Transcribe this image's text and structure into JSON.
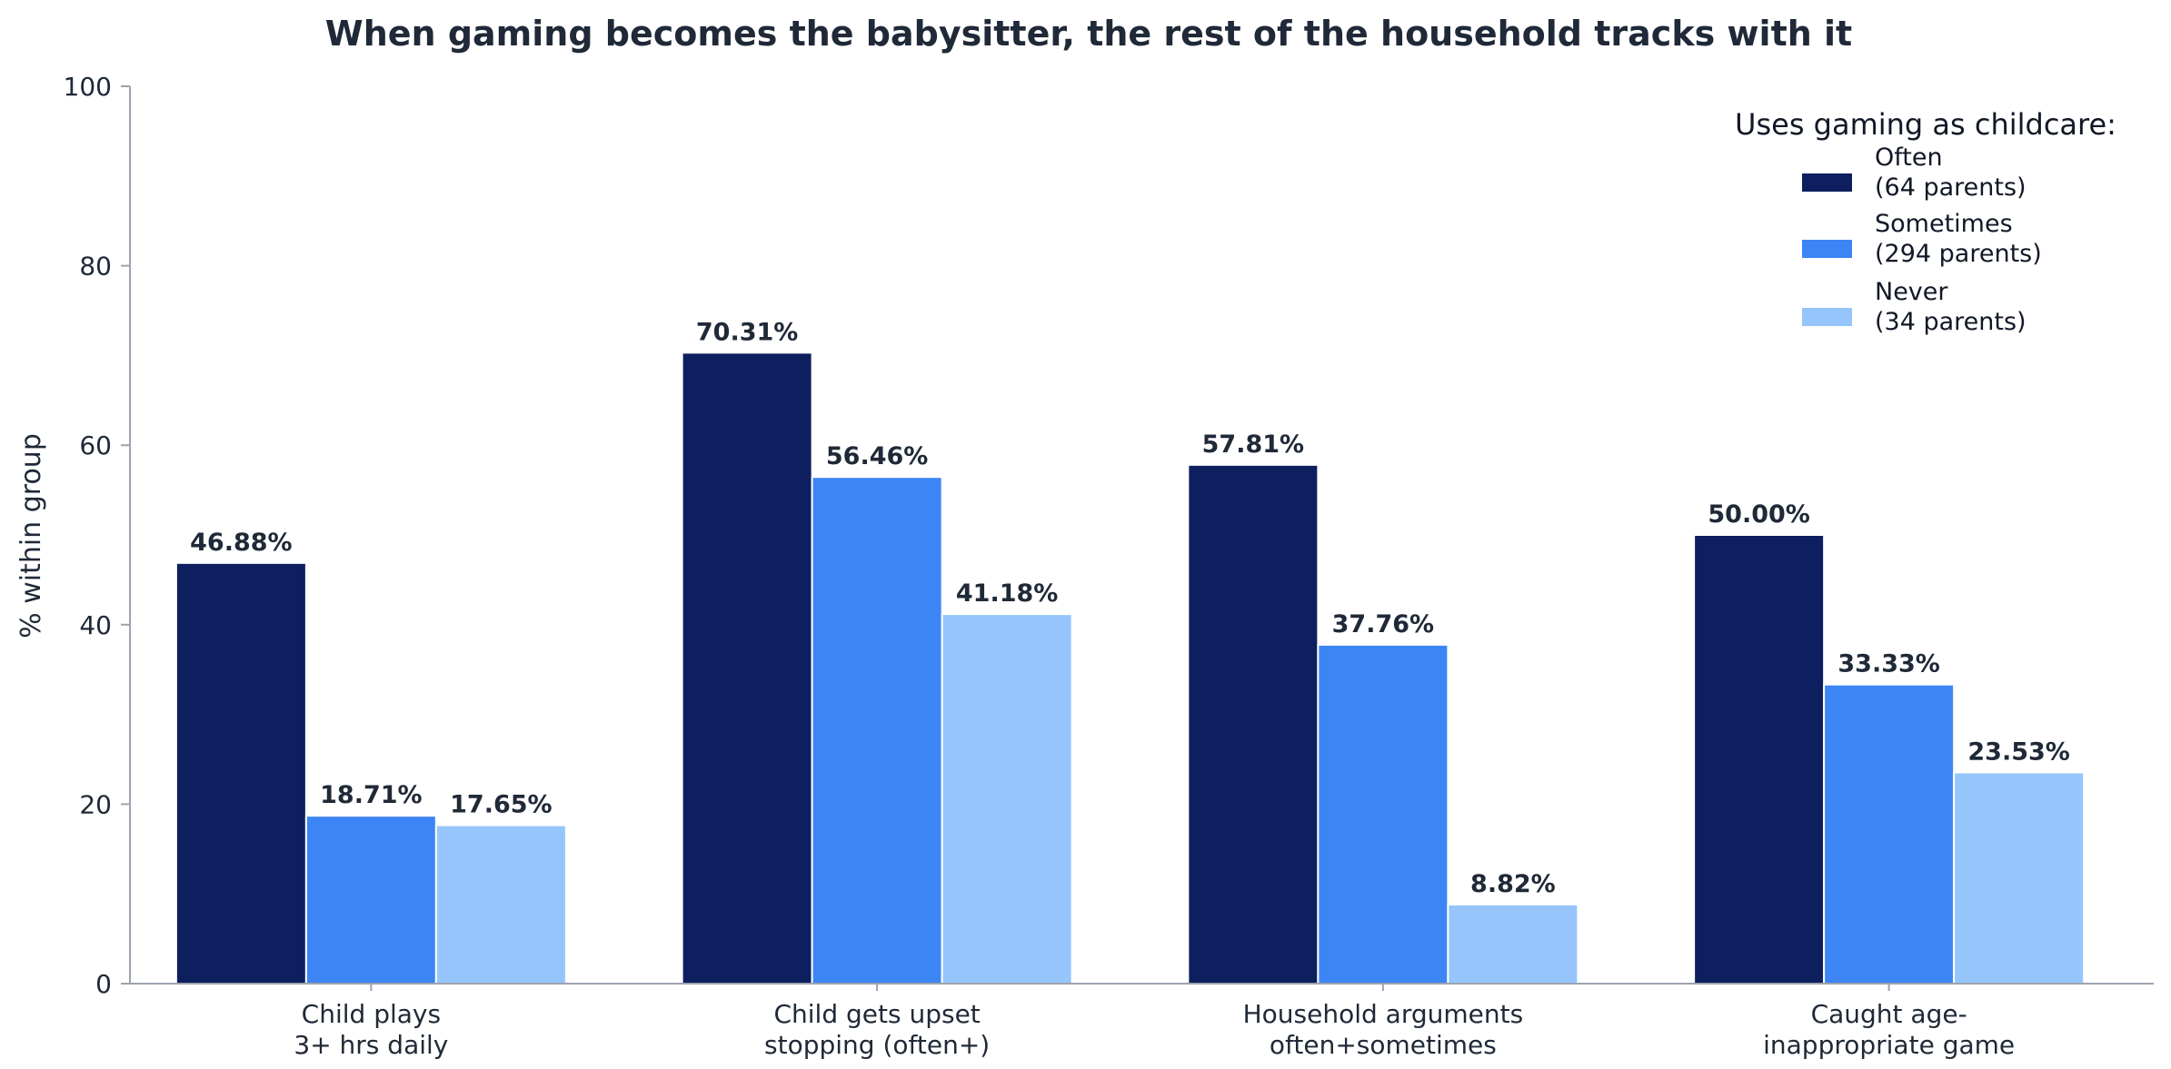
{
  "chart_data": {
    "type": "bar",
    "title": "When gaming becomes the babysitter, the rest of the household tracks with it",
    "xlabel": "",
    "ylabel": "% within group",
    "ylim": [
      0,
      100
    ],
    "yticks": [
      0,
      20,
      40,
      60,
      80,
      100
    ],
    "grid": false,
    "categories": [
      [
        "Child plays",
        "3+ hrs daily"
      ],
      [
        "Child gets upset",
        "stopping (often+)"
      ],
      [
        "Household arguments",
        "often+sometimes"
      ],
      [
        "Caught age-",
        "inappropriate game"
      ]
    ],
    "series": [
      {
        "name": [
          "Often",
          "(64 parents)"
        ],
        "color": "#0d1f5e",
        "values": [
          46.88,
          70.31,
          57.81,
          50.0
        ],
        "labels": [
          "46.88%",
          "70.31%",
          "57.81%",
          "50.00%"
        ]
      },
      {
        "name": [
          "Sometimes",
          "(294 parents)"
        ],
        "color": "#3d85f5",
        "values": [
          18.71,
          56.46,
          37.76,
          33.33
        ],
        "labels": [
          "18.71%",
          "56.46%",
          "37.76%",
          "33.33%"
        ]
      },
      {
        "name": [
          "Never",
          "(34 parents)"
        ],
        "color": "#95c5fb",
        "values": [
          17.65,
          41.18,
          8.82,
          23.53
        ],
        "labels": [
          "17.65%",
          "41.18%",
          "8.82%",
          "23.53%"
        ]
      }
    ],
    "legend": {
      "title": "Uses gaming as childcare:",
      "placement": "top-right"
    }
  }
}
